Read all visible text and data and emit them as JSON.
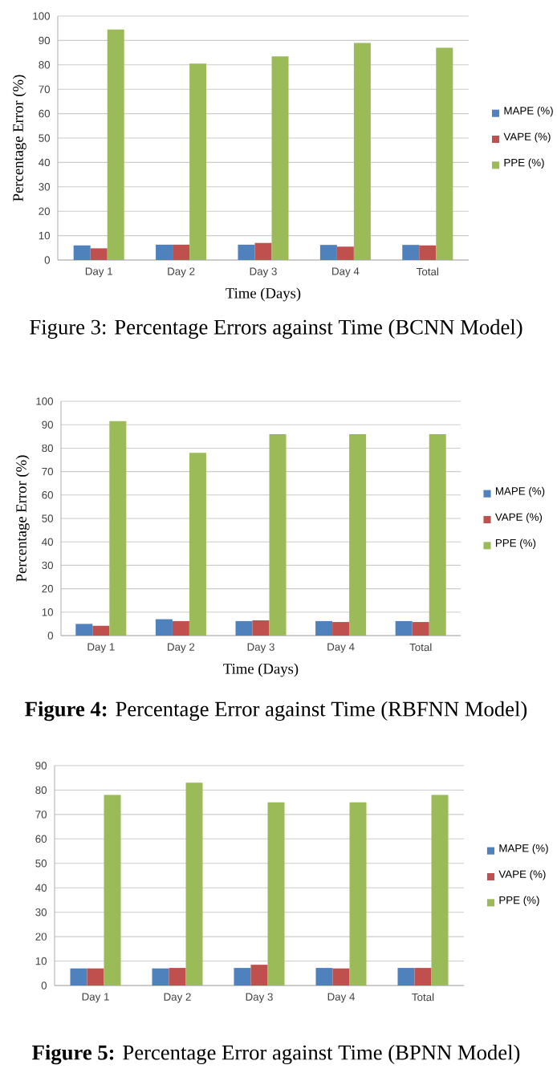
{
  "chart_data": [
    {
      "type": "bar",
      "categories": [
        "Day 1",
        "Day 2",
        "Day 3",
        "Day 4",
        "Total"
      ],
      "xlabel": "Time (Days)",
      "ylabel": "Percentage Error (%)",
      "ylim": [
        0,
        100
      ],
      "yticks": [
        0,
        10,
        20,
        30,
        40,
        50,
        60,
        70,
        80,
        90,
        100
      ],
      "grid": "y",
      "legend": "right",
      "series": [
        {
          "name": "MAPE (%)",
          "color": "#4f81bd",
          "values": [
            6,
            6.3,
            6.3,
            6.2,
            6.2
          ]
        },
        {
          "name": "VAPE (%)",
          "color": "#c0504d",
          "values": [
            4.8,
            6.3,
            7,
            5.5,
            6
          ]
        },
        {
          "name": "PPE (%)",
          "color": "#9bbb59",
          "values": [
            94.5,
            80.5,
            83.5,
            89,
            87
          ]
        }
      ],
      "annotations": [
        "Figure 3: Percentage Errors against Time (BCNN Model)"
      ]
    },
    {
      "type": "bar",
      "categories": [
        "Day 1",
        "Day 2",
        "Day 3",
        "Day 4",
        "Total"
      ],
      "xlabel": "Time (Days)",
      "ylabel": "Percentage Error (%)",
      "ylim": [
        0,
        100
      ],
      "yticks": [
        0,
        10,
        20,
        30,
        40,
        50,
        60,
        70,
        80,
        90,
        100
      ],
      "grid": "y",
      "legend": "right",
      "series": [
        {
          "name": "MAPE (%)",
          "color": "#4f81bd",
          "values": [
            5,
            7,
            6.2,
            6.2,
            6.2
          ]
        },
        {
          "name": "VAPE (%)",
          "color": "#c0504d",
          "values": [
            4.2,
            6.2,
            6.5,
            5.8,
            5.8
          ]
        },
        {
          "name": "PPE (%)",
          "color": "#9bbb59",
          "values": [
            91.5,
            78,
            86,
            86,
            86
          ]
        }
      ],
      "annotations": [
        "**Figure 4:** Percentage Error against Time (RBFNN Model)"
      ]
    },
    {
      "type": "bar",
      "categories": [
        "Day 1",
        "Day 2",
        "Day 3",
        "Day 4",
        "Total"
      ],
      "ylim": [
        0,
        90
      ],
      "yticks": [
        0,
        10,
        20,
        30,
        40,
        50,
        60,
        70,
        80,
        90
      ],
      "grid": "y",
      "legend": "right",
      "series": [
        {
          "name": "MAPE (%)",
          "color": "#4f81bd",
          "values": [
            7,
            7,
            7.2,
            7.2,
            7.2
          ]
        },
        {
          "name": "VAPE (%)",
          "color": "#c0504d",
          "values": [
            7,
            7.2,
            8.5,
            7,
            7.2
          ]
        },
        {
          "name": "PPE (%)",
          "color": "#9bbb59",
          "values": [
            78,
            83,
            75,
            75,
            78
          ]
        }
      ],
      "annotations": [
        "**Figure 5:** Percentage Error against Time (BPNN Model)"
      ]
    }
  ]
}
